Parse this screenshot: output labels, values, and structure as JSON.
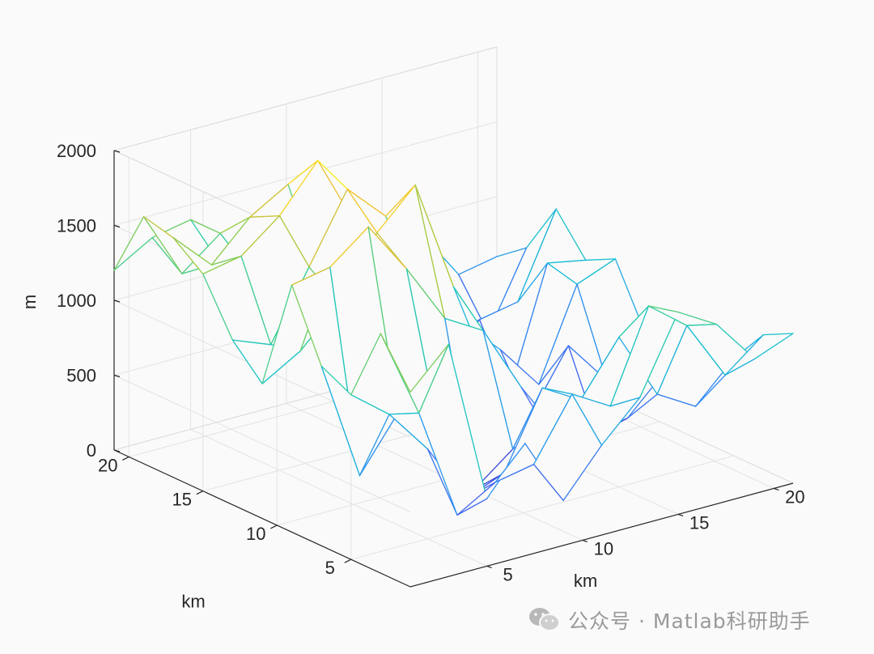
{
  "chart_data": {
    "type": "mesh",
    "title": "",
    "xlabel": "km",
    "ylabel": "km",
    "zlabel": "m",
    "xlim": [
      1,
      21
    ],
    "ylim": [
      1,
      21
    ],
    "zlim": [
      0,
      2000
    ],
    "x_ticks": [
      "5",
      "10",
      "15",
      "20"
    ],
    "y_ticks": [
      "5",
      "10",
      "15",
      "20"
    ],
    "z_ticks": [
      "0",
      "500",
      "1000",
      "1500",
      "2000"
    ],
    "grid": true,
    "colormap": "parula",
    "x": [
      1,
      3,
      5,
      7,
      9,
      11,
      13,
      15,
      17,
      19,
      21
    ],
    "y": [
      1,
      3,
      5,
      7,
      9,
      11,
      13,
      15,
      17,
      19,
      21
    ],
    "z": [
      [
        1300,
        1550,
        450,
        750,
        300,
        600,
        850,
        1350,
        1200,
        900,
        1000
      ],
      [
        1600,
        1000,
        250,
        400,
        450,
        850,
        700,
        1300,
        1100,
        700,
        900
      ],
      [
        1100,
        900,
        600,
        200,
        300,
        800,
        650,
        1000,
        550,
        400,
        650
      ],
      [
        1200,
        400,
        750,
        650,
        100,
        300,
        400,
        250,
        300,
        550,
        800
      ],
      [
        1650,
        1700,
        1900,
        1550,
        1150,
        1000,
        550,
        50,
        100,
        500,
        700
      ],
      [
        900,
        1050,
        1300,
        1700,
        1950,
        1200,
        500,
        200,
        600,
        300,
        550
      ],
      [
        1100,
        1000,
        1450,
        1900,
        1650,
        1000,
        800,
        550,
        250,
        850,
        950
      ],
      [
        1450,
        1500,
        1700,
        2000,
        1500,
        1100,
        700,
        350,
        100,
        900,
        850
      ],
      [
        1600,
        1350,
        1600,
        1750,
        900,
        800,
        400,
        200,
        500,
        550,
        1100
      ],
      [
        1650,
        1200,
        1400,
        1000,
        1100,
        900,
        500,
        400,
        300,
        250,
        750
      ],
      [
        1200,
        1350,
        1400,
        950,
        1000,
        1000,
        800,
        600,
        900,
        550,
        600
      ]
    ]
  },
  "watermark": {
    "text": "公众号 · Matlab科研助手",
    "icon": "wechat-icon"
  }
}
